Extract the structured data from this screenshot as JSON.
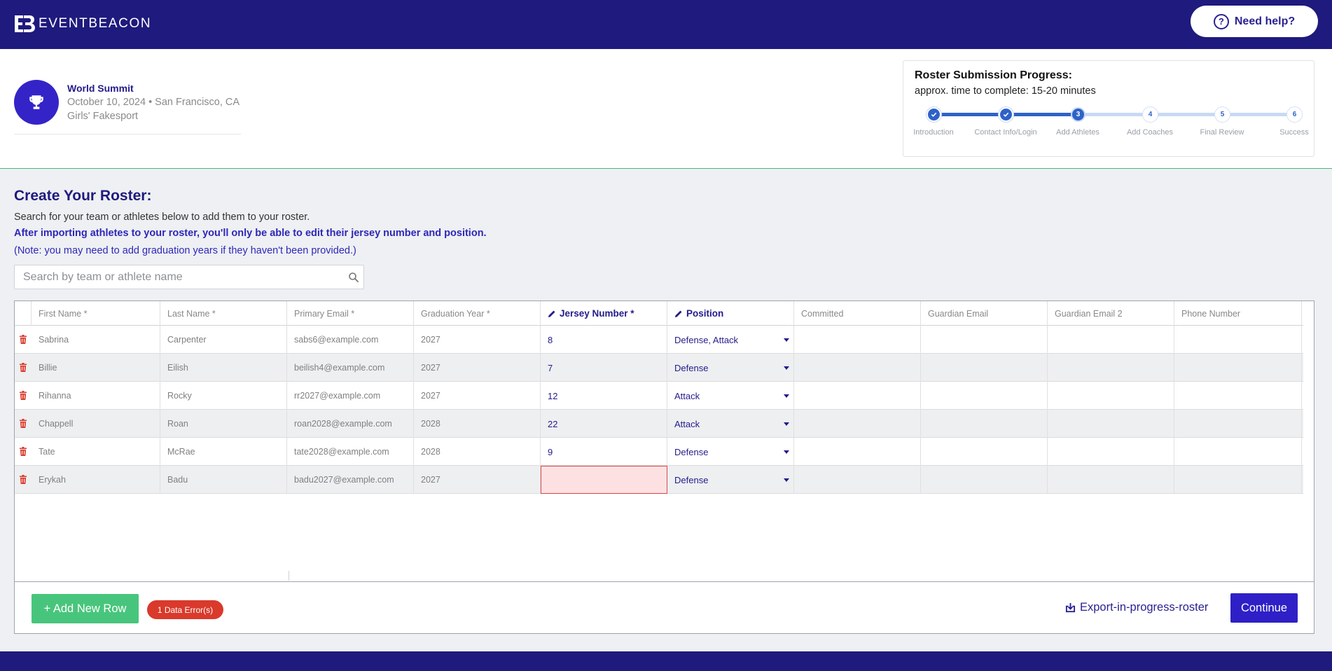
{
  "header": {
    "logo_text": "EVENTBEACON",
    "help_label": "Need help?"
  },
  "event": {
    "title": "World Summit",
    "date_location": "October 10, 2024 • San Francisco, CA",
    "division": "Girls' Fakesport"
  },
  "progress": {
    "title": "Roster Submission Progress:",
    "subtitle": "approx. time to complete: 15-20 minutes",
    "current_step": 3,
    "steps": [
      {
        "number": "1",
        "label": "Introduction",
        "status": "done"
      },
      {
        "number": "2",
        "label": "Contact Info/Login",
        "status": "done"
      },
      {
        "number": "3",
        "label": "Add Athletes",
        "status": "current"
      },
      {
        "number": "4",
        "label": "Add Coaches",
        "status": "todo"
      },
      {
        "number": "5",
        "label": "Final Review",
        "status": "todo"
      },
      {
        "number": "6",
        "label": "Success",
        "status": "todo"
      }
    ]
  },
  "roster": {
    "title": "Create Your Roster:",
    "line1": "Search for your team or athletes below to add them to your roster.",
    "line2": "After importing athletes to your roster, you'll only be able to edit their jersey number and position.",
    "line3": "(Note: you may need to add graduation years if they haven't been provided.)",
    "search_placeholder": "Search by team or athlete name"
  },
  "grid": {
    "columns": [
      "First Name *",
      "Last Name *",
      "Primary Email *",
      "Graduation Year *",
      "Jersey Number *",
      "Position",
      "Committed",
      "Guardian Email",
      "Guardian Email 2",
      "Phone Number"
    ],
    "rows": [
      {
        "first": "Sabrina",
        "last": "Carpenter",
        "email": "sabs6@example.com",
        "grad": "2027",
        "jersey": "8",
        "position": "Defense, Attack"
      },
      {
        "first": "Billie",
        "last": "Eilish",
        "email": "beilish4@example.com",
        "grad": "2027",
        "jersey": "7",
        "position": "Defense"
      },
      {
        "first": "Rihanna",
        "last": "Rocky",
        "email": "rr2027@example.com",
        "grad": "2027",
        "jersey": "12",
        "position": "Attack"
      },
      {
        "first": "Chappell",
        "last": "Roan",
        "email": "roan2028@example.com",
        "grad": "2028",
        "jersey": "22",
        "position": "Attack"
      },
      {
        "first": "Tate",
        "last": "McRae",
        "email": "tate2028@example.com",
        "grad": "2028",
        "jersey": "9",
        "position": "Defense"
      },
      {
        "first": "Erykah",
        "last": "Badu",
        "email": "badu2027@example.com",
        "grad": "2027",
        "jersey": "",
        "position": "Defense"
      }
    ]
  },
  "actions": {
    "add_row": "+ Add New Row",
    "error_badge": "1 Data Error(s)",
    "export": "Export-in-progress-roster",
    "continue": "Continue"
  },
  "colors": {
    "brand": "#1f1a7d",
    "accent": "#2e20c6",
    "success": "#48c57c",
    "error": "#d93a2b",
    "progress": "#2e62c9"
  }
}
